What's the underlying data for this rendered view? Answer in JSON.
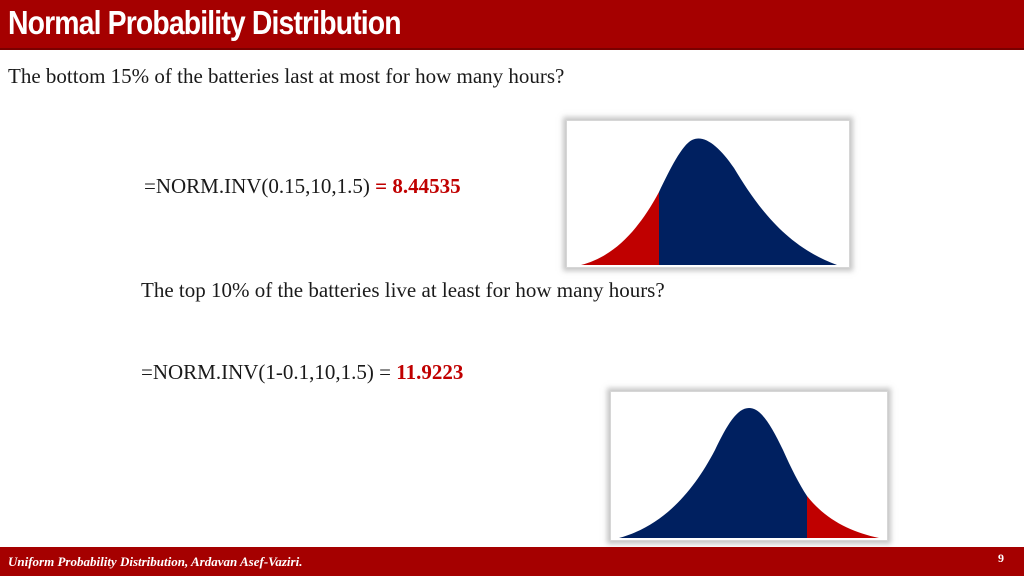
{
  "header": {
    "title": "Normal Probability Distribution"
  },
  "questions": {
    "bottom": {
      "question": "The bottom 15%  of the batteries last  at most for how many hours?",
      "formula": "=NORM.INV(0.15,10,1.5)",
      "result": "= 8.44535"
    },
    "top": {
      "question": "The top 10% of the batteries live at least for how many hours?",
      "formula": "=NORM.INV(1-0.1,10,1.5) =",
      "result": "11.9223"
    }
  },
  "curves": {
    "body_color": "#002060",
    "tail_color": "#c00000",
    "bottom_curve": {
      "shaded_tail": "left"
    },
    "top_curve": {
      "shaded_tail": "right"
    }
  },
  "footer": {
    "text": "Uniform Probability Distribution, Ardavan Asef-Vaziri.",
    "page_number": "9"
  }
}
